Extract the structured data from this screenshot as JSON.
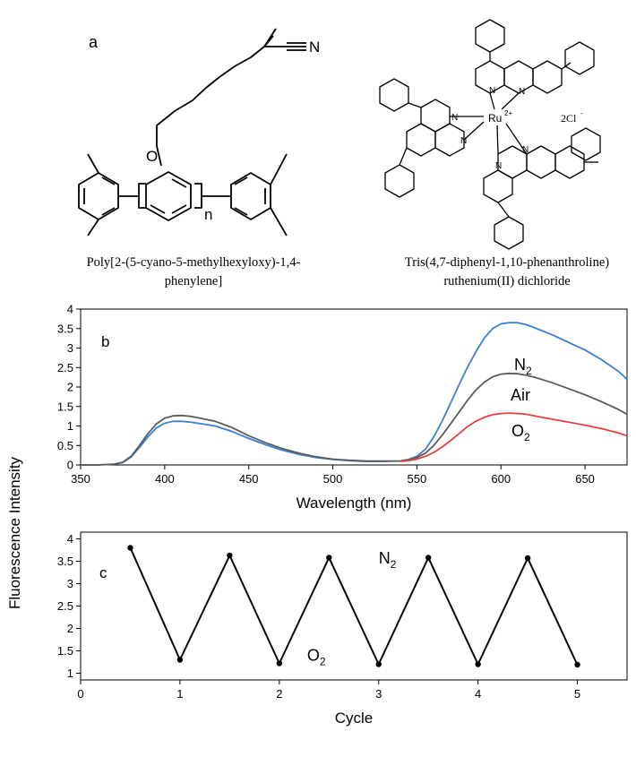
{
  "panel_a": {
    "label": "a",
    "left_structure": {
      "atom_N": "N",
      "atom_O": "O",
      "repeat_n": "n",
      "name_line1": "Poly[2-(5-cyano-5-methylhexyloxy)-1,4-",
      "name_line2": "phenylene]"
    },
    "right_structure": {
      "metal": "Ru",
      "metal_charge": "2+",
      "atom_N": "N",
      "counterion": "2Cl",
      "counterion_charge": "-",
      "name_line1": "Tris(4,7-diphenyl-1,10-phenanthroline)",
      "name_line2": "ruthenium(II) dichloride"
    }
  },
  "chart_data": [
    {
      "panel": "b",
      "type": "line",
      "xlabel": "Wavelength (nm)",
      "ylabel": "Fluorescence Intensity",
      "xlim": [
        350,
        675
      ],
      "ylim": [
        0,
        4
      ],
      "xticks": [
        350,
        400,
        450,
        500,
        550,
        600,
        650
      ],
      "yticks": [
        0,
        0.5,
        1,
        1.5,
        2,
        2.5,
        3,
        3.5,
        4
      ],
      "xtick_labels": [
        "350",
        "400",
        "450",
        "500",
        "550",
        "600",
        "650"
      ],
      "ytick_labels": [
        "0",
        "0.5",
        "1",
        "1.5",
        "2",
        "2.5",
        "3",
        "3.5",
        "4"
      ],
      "grid": false,
      "series": [
        {
          "name": "N2",
          "label_text": "N",
          "label_sub": "2",
          "color": "#3a7fd5",
          "x": [
            350,
            360,
            370,
            375,
            380,
            385,
            390,
            395,
            400,
            405,
            410,
            415,
            420,
            430,
            440,
            450,
            460,
            470,
            480,
            490,
            500,
            510,
            520,
            530,
            540,
            545,
            550,
            555,
            560,
            565,
            570,
            575,
            580,
            585,
            590,
            595,
            600,
            605,
            610,
            615,
            620,
            630,
            640,
            650,
            660,
            670,
            675
          ],
          "y": [
            0,
            0,
            0.02,
            0.06,
            0.2,
            0.45,
            0.72,
            0.95,
            1.07,
            1.12,
            1.12,
            1.1,
            1.07,
            1.0,
            0.86,
            0.68,
            0.52,
            0.38,
            0.27,
            0.19,
            0.14,
            0.11,
            0.09,
            0.09,
            0.1,
            0.14,
            0.22,
            0.4,
            0.72,
            1.12,
            1.58,
            2.05,
            2.5,
            2.9,
            3.25,
            3.5,
            3.62,
            3.65,
            3.65,
            3.6,
            3.52,
            3.35,
            3.15,
            2.95,
            2.7,
            2.4,
            2.2
          ]
        },
        {
          "name": "Air",
          "label_text": "Air",
          "label_sub": "",
          "color": "#5b5b5b",
          "x": [
            350,
            360,
            370,
            375,
            380,
            385,
            390,
            395,
            400,
            405,
            410,
            415,
            420,
            430,
            440,
            450,
            460,
            470,
            480,
            490,
            500,
            510,
            520,
            530,
            540,
            545,
            550,
            555,
            560,
            565,
            570,
            575,
            580,
            585,
            590,
            595,
            600,
            605,
            610,
            615,
            620,
            630,
            640,
            650,
            660,
            670,
            675
          ],
          "y": [
            0,
            0,
            0.02,
            0.07,
            0.22,
            0.5,
            0.8,
            1.05,
            1.2,
            1.26,
            1.27,
            1.25,
            1.21,
            1.12,
            0.96,
            0.75,
            0.57,
            0.42,
            0.3,
            0.21,
            0.15,
            0.12,
            0.1,
            0.1,
            0.1,
            0.13,
            0.19,
            0.3,
            0.5,
            0.76,
            1.05,
            1.35,
            1.65,
            1.92,
            2.12,
            2.26,
            2.33,
            2.35,
            2.34,
            2.3,
            2.25,
            2.12,
            1.96,
            1.8,
            1.62,
            1.42,
            1.3
          ]
        },
        {
          "name": "O2",
          "label_text": "O",
          "label_sub": "2",
          "color": "#e84040",
          "x": [
            540,
            545,
            550,
            555,
            560,
            565,
            570,
            575,
            580,
            585,
            590,
            595,
            600,
            605,
            610,
            615,
            620,
            630,
            640,
            650,
            660,
            670,
            675
          ],
          "y": [
            0.09,
            0.11,
            0.15,
            0.22,
            0.32,
            0.46,
            0.62,
            0.8,
            0.98,
            1.12,
            1.22,
            1.29,
            1.32,
            1.33,
            1.32,
            1.3,
            1.26,
            1.18,
            1.1,
            1.02,
            0.93,
            0.82,
            0.75
          ]
        }
      ]
    },
    {
      "panel": "c",
      "type": "line",
      "xlabel": "Cycle",
      "ylabel": "",
      "xlim": [
        0,
        5.5
      ],
      "ylim": [
        0.85,
        4.15
      ],
      "xticks": [
        0,
        1,
        2,
        3,
        4,
        5
      ],
      "yticks": [
        1,
        1.5,
        2,
        2.5,
        3,
        3.5,
        4
      ],
      "xtick_labels": [
        "0",
        "1",
        "2",
        "3",
        "4",
        "5"
      ],
      "ytick_labels": [
        "1",
        "1.5",
        "2",
        "2.5",
        "3",
        "3.5",
        "4"
      ],
      "grid": false,
      "annotations": [
        {
          "text": "N",
          "sub": "2",
          "x": 3.0,
          "y": 3.45
        },
        {
          "text": "O",
          "sub": "2",
          "x": 2.28,
          "y": 1.28
        }
      ],
      "series": [
        {
          "name": "",
          "color": "#000000",
          "x": [
            0.5,
            1,
            1.5,
            2,
            2.5,
            3,
            3.5,
            4,
            4.5,
            5
          ],
          "y": [
            3.8,
            1.3,
            3.63,
            1.22,
            3.58,
            1.2,
            3.58,
            1.2,
            3.57,
            1.19
          ]
        }
      ]
    }
  ],
  "shared_ylabel": "Fluorescence Intensity"
}
